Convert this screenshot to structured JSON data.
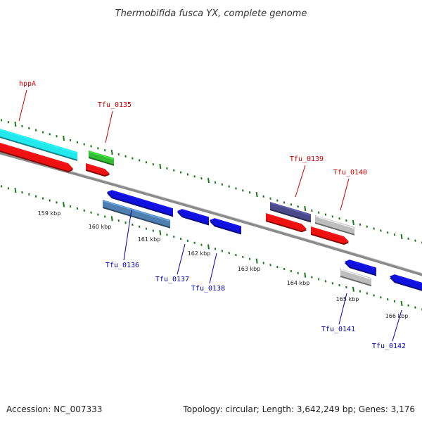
{
  "title": "Thermobifida fusca YX, complete genome",
  "footer": {
    "accession": "Accession: NC_007333",
    "summary": "Topology: circular; Length: 3,642,249 bp; Genes: 3,176"
  },
  "colors": {
    "backbone": "#8a8a8a",
    "tick": "#1a7a1a",
    "label_red": "#cc0000",
    "label_blue": "#0000b0",
    "cyan": "#22e8ee",
    "red": "#ee1111",
    "green": "#33bb33",
    "blue": "#1111dd",
    "steel": "#4f7fb0",
    "purple": "#4a4a8a",
    "gray": "#bdbdbd"
  },
  "scale_labels": [
    "159 kbp",
    "160 kbp",
    "161 kbp",
    "162 kbp",
    "163 kbp",
    "164 kbp",
    "165 kbp",
    "166 kbp"
  ],
  "genes_top": [
    {
      "label": "hppA",
      "color": "cyan"
    },
    {
      "label": "Tfu_0135",
      "color": "green"
    },
    {
      "label": "Tfu_0139",
      "color": "purple"
    },
    {
      "label": "Tfu_0140",
      "color": "gray"
    }
  ],
  "genes_bottom": [
    {
      "label": "Tfu_0136",
      "color": "steel"
    },
    {
      "label": "Tfu_0137",
      "color": "blue"
    },
    {
      "label": "Tfu_0138",
      "color": "blue"
    },
    {
      "label": "Tfu_0141",
      "color": "gray"
    },
    {
      "label": "Tfu_0142",
      "color": "blue"
    }
  ]
}
